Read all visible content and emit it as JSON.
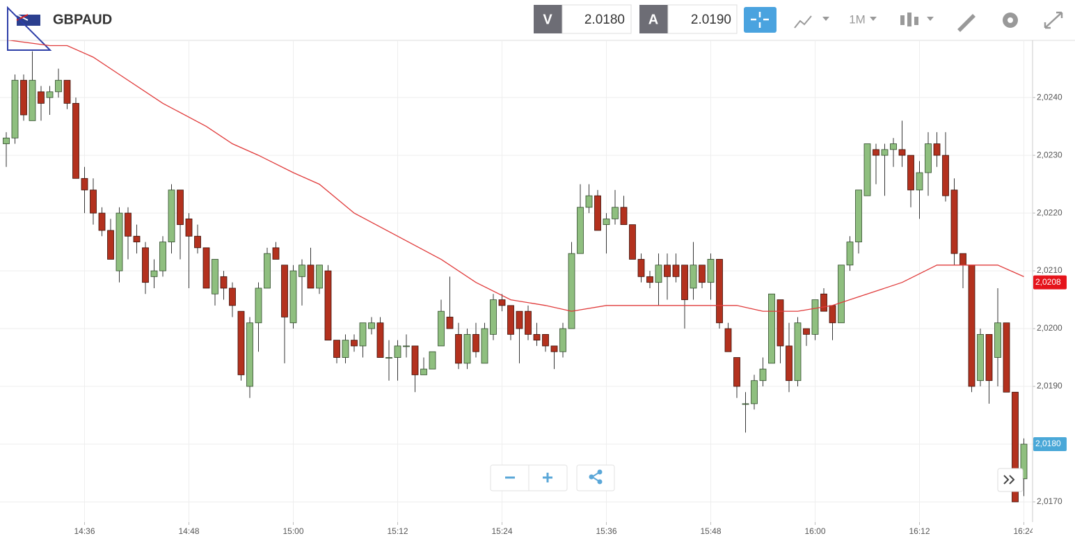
{
  "header": {
    "symbol": "GBPAUD",
    "bid_label": "V",
    "bid": "2.0180",
    "ask_label": "A",
    "ask": "2.0190",
    "timeframe": "1M"
  },
  "chart_data": {
    "type": "candlestick",
    "categories": [
      "14:27",
      "14:28",
      "14:29",
      "14:30",
      "14:31",
      "14:32",
      "14:33",
      "14:34",
      "14:35",
      "14:36",
      "14:37",
      "14:38",
      "14:39",
      "14:40",
      "14:41",
      "14:42",
      "14:43",
      "14:44",
      "14:45",
      "14:46",
      "14:47",
      "14:48",
      "14:49",
      "14:50",
      "14:51",
      "14:52",
      "14:53",
      "14:54",
      "14:55",
      "14:56",
      "14:57",
      "14:58",
      "14:59",
      "15:00",
      "15:01",
      "15:02",
      "15:03",
      "15:04",
      "15:05",
      "15:06",
      "15:07",
      "15:08",
      "15:09",
      "15:10",
      "15:11",
      "15:12",
      "15:13",
      "15:14",
      "15:15",
      "15:16",
      "15:17",
      "15:18",
      "15:19",
      "15:20",
      "15:21",
      "15:22",
      "15:23",
      "15:24",
      "15:25",
      "15:26",
      "15:27",
      "15:28",
      "15:29",
      "15:30",
      "15:31",
      "15:32",
      "15:33",
      "15:34",
      "15:35",
      "15:36",
      "15:37",
      "15:38",
      "15:39",
      "15:40",
      "15:41",
      "15:42",
      "15:43",
      "15:44",
      "15:45",
      "15:46",
      "15:47",
      "15:48",
      "15:49",
      "15:50",
      "15:51",
      "15:52",
      "15:53",
      "15:54",
      "15:55",
      "15:56",
      "15:57",
      "15:58",
      "15:59",
      "16:00",
      "16:01",
      "16:02",
      "16:03",
      "16:04",
      "16:05",
      "16:06",
      "16:07",
      "16:08",
      "16:09",
      "16:10",
      "16:11",
      "16:12",
      "16:13",
      "16:14",
      "16:15",
      "16:16",
      "16:17",
      "16:18",
      "16:19",
      "16:20",
      "16:21",
      "16:22",
      "16:23",
      "16:24"
    ],
    "open": [
      2.0232,
      2.0233,
      2.0243,
      2.0236,
      2.0241,
      2.024,
      2.0241,
      2.0243,
      2.0239,
      2.0226,
      2.0224,
      2.022,
      2.0217,
      2.021,
      2.022,
      2.0216,
      2.0214,
      2.0209,
      2.021,
      2.0215,
      2.0224,
      2.0219,
      2.0216,
      2.0214,
      2.0206,
      2.0209,
      2.0207,
      2.0203,
      2.019,
      2.0201,
      2.0207,
      2.0214,
      2.0211,
      2.0201,
      2.0209,
      2.0211,
      2.0207,
      2.021,
      2.0198,
      2.0195,
      2.0198,
      2.0197,
      2.02,
      2.0201,
      2.0195,
      2.0195,
      2.0197,
      2.0197,
      2.0192,
      2.0193,
      2.0197,
      2.0202,
      2.0199,
      2.0194,
      2.0199,
      2.0194,
      2.0199,
      2.0205,
      2.0204,
      2.0203,
      2.0203,
      2.0199,
      2.0199,
      2.0197,
      2.0196,
      2.02,
      2.0213,
      2.0221,
      2.0223,
      2.0218,
      2.0219,
      2.0221,
      2.0218,
      2.0212,
      2.0209,
      2.0208,
      2.0211,
      2.0211,
      2.0211,
      2.0207,
      2.0211,
      2.0208,
      2.0212,
      2.02,
      2.0195,
      2.0187,
      2.0187,
      2.0191,
      2.0194,
      2.0205,
      2.0197,
      2.0191,
      2.02,
      2.0199,
      2.0206,
      2.0204,
      2.0201,
      2.0211,
      2.0215,
      2.0223,
      2.0231,
      2.023,
      2.0231,
      2.0231,
      2.023,
      2.0224,
      2.0227,
      2.0232,
      2.023,
      2.0224,
      2.0213,
      2.0211,
      2.0191,
      2.0199,
      2.0195,
      2.0201,
      2.0189,
      2.0174
    ],
    "high": [
      2.0234,
      2.0244,
      2.0244,
      2.0248,
      2.0242,
      2.0242,
      2.0245,
      2.0243,
      2.024,
      2.0228,
      2.0226,
      2.0221,
      2.0219,
      2.0221,
      2.0221,
      2.0218,
      2.0215,
      2.0212,
      2.0216,
      2.0225,
      2.0224,
      2.022,
      2.0218,
      2.0214,
      2.0212,
      2.021,
      2.0208,
      2.0203,
      2.0202,
      2.0208,
      2.0214,
      2.0215,
      2.0211,
      2.0211,
      2.0212,
      2.0214,
      2.0211,
      2.0211,
      2.0198,
      2.0199,
      2.0199,
      2.0201,
      2.0202,
      2.0202,
      2.0198,
      2.0198,
      2.0199,
      2.0197,
      2.0195,
      2.0196,
      2.0205,
      2.0209,
      2.0201,
      2.02,
      2.0201,
      2.0201,
      2.0206,
      2.0206,
      2.0204,
      2.0203,
      2.0204,
      2.0201,
      2.0199,
      2.0197,
      2.0201,
      2.0215,
      2.0225,
      2.0225,
      2.0224,
      2.022,
      2.0224,
      2.0223,
      2.0218,
      2.0213,
      2.021,
      2.0213,
      2.0213,
      2.0213,
      2.0211,
      2.0215,
      2.0211,
      2.0213,
      2.0212,
      2.0201,
      2.0195,
      2.0189,
      2.0192,
      2.0195,
      2.0206,
      2.0205,
      2.0201,
      2.0202,
      2.02,
      2.0205,
      2.0207,
      2.0204,
      2.0211,
      2.0216,
      2.0224,
      2.0232,
      2.0232,
      2.0232,
      2.0233,
      2.0236,
      2.023,
      2.0229,
      2.0234,
      2.0234,
      2.0234,
      2.0226,
      2.0213,
      2.0211,
      2.02,
      2.0199,
      2.0207,
      2.0201,
      2.0189,
      2.0181
    ],
    "low": [
      2.0228,
      2.0232,
      2.0236,
      2.0236,
      2.0236,
      2.0237,
      2.024,
      2.0238,
      2.0226,
      2.022,
      2.0218,
      2.0216,
      2.0212,
      2.0208,
      2.0212,
      2.0213,
      2.0206,
      2.0207,
      2.0209,
      2.0213,
      2.0212,
      2.0207,
      2.0213,
      2.0207,
      2.0204,
      2.0205,
      2.0202,
      2.0191,
      2.0188,
      2.0196,
      2.0207,
      2.0212,
      2.0194,
      2.02,
      2.0204,
      2.0207,
      2.0206,
      2.0198,
      2.0194,
      2.0194,
      2.0196,
      2.0195,
      2.0199,
      2.0195,
      2.0191,
      2.0191,
      2.0195,
      2.0189,
      2.0192,
      2.0193,
      2.0197,
      2.02,
      2.0193,
      2.0193,
      2.0195,
      2.0194,
      2.0198,
      2.0203,
      2.0198,
      2.0194,
      2.0198,
      2.0197,
      2.0196,
      2.0193,
      2.0195,
      2.02,
      2.0213,
      2.022,
      2.0217,
      2.0213,
      2.0218,
      2.0218,
      2.0212,
      2.0208,
      2.0207,
      2.0204,
      2.0205,
      2.0208,
      2.02,
      2.0205,
      2.0207,
      2.0205,
      2.02,
      2.0196,
      2.0188,
      2.0182,
      2.0186,
      2.019,
      2.0194,
      2.0194,
      2.0189,
      2.019,
      2.0197,
      2.0198,
      2.0203,
      2.0198,
      2.0201,
      2.021,
      2.0213,
      2.0223,
      2.0225,
      2.0223,
      2.0228,
      2.0228,
      2.0221,
      2.0219,
      2.0223,
      2.0228,
      2.0222,
      2.0211,
      2.0207,
      2.0189,
      2.019,
      2.0187,
      2.019,
      2.0189,
      2.017,
      2.0171
    ],
    "close": [
      2.0233,
      2.0243,
      2.0237,
      2.0243,
      2.0239,
      2.0241,
      2.0243,
      2.0239,
      2.0226,
      2.0224,
      2.022,
      2.0217,
      2.0212,
      2.022,
      2.0216,
      2.0215,
      2.0208,
      2.021,
      2.0215,
      2.0224,
      2.0218,
      2.0216,
      2.0214,
      2.0207,
      2.0212,
      2.0207,
      2.0204,
      2.0192,
      2.0201,
      2.0207,
      2.0213,
      2.0212,
      2.0202,
      2.021,
      2.0211,
      2.0207,
      2.0211,
      2.0198,
      2.0195,
      2.0198,
      2.0197,
      2.0201,
      2.0201,
      2.0195,
      2.0195,
      2.0197,
      2.0197,
      2.0192,
      2.0193,
      2.0196,
      2.0203,
      2.02,
      2.0194,
      2.0199,
      2.0196,
      2.02,
      2.0205,
      2.0204,
      2.0199,
      2.02,
      2.0199,
      2.0198,
      2.0197,
      2.0196,
      2.02,
      2.0213,
      2.0221,
      2.0223,
      2.0217,
      2.0219,
      2.0221,
      2.0218,
      2.0212,
      2.0209,
      2.0208,
      2.0211,
      2.0209,
      2.0209,
      2.0205,
      2.0211,
      2.0208,
      2.0212,
      2.0201,
      2.0196,
      2.019,
      2.0187,
      2.0191,
      2.0193,
      2.0206,
      2.0197,
      2.0191,
      2.0201,
      2.0199,
      2.0205,
      2.0203,
      2.0201,
      2.0211,
      2.0215,
      2.0224,
      2.0232,
      2.023,
      2.0231,
      2.0232,
      2.023,
      2.0224,
      2.0227,
      2.0232,
      2.023,
      2.0223,
      2.0213,
      2.0211,
      2.019,
      2.0199,
      2.0191,
      2.0201,
      2.0189,
      2.017,
      2.018
    ],
    "up_color": "#8fbf7f",
    "down_color": "#b3311e",
    "ma": {
      "color": "#e03a3a",
      "x": [
        "14:27",
        "14:32",
        "14:34",
        "14:37",
        "14:40",
        "14:45",
        "14:50",
        "14:53",
        "14:56",
        "15:00",
        "15:03",
        "15:07",
        "15:12",
        "15:17",
        "15:21",
        "15:25",
        "15:29",
        "15:32",
        "15:36",
        "15:41",
        "15:44",
        "15:47",
        "15:51",
        "15:54",
        "15:58",
        "16:02",
        "16:06",
        "16:10",
        "16:14",
        "16:17",
        "16:21",
        "16:24"
      ],
      "values": [
        2.025,
        2.0249,
        2.0249,
        2.0247,
        2.0244,
        2.0239,
        2.0235,
        2.0232,
        2.023,
        2.0227,
        2.0225,
        2.022,
        2.0216,
        2.0212,
        2.0208,
        2.0205,
        2.0204,
        2.0203,
        2.0204,
        2.0204,
        2.0204,
        2.0204,
        2.0204,
        2.0203,
        2.0203,
        2.0204,
        2.0206,
        2.0208,
        2.0211,
        2.0211,
        2.0211,
        2.0209
      ]
    },
    "price_labels": [
      {
        "value": 2.0208,
        "label": "2,0208",
        "color": "#e5141b"
      },
      {
        "value": 2.018,
        "label": "2,0180",
        "color": "#4aa8d8"
      }
    ],
    "ylim": [
      2.01665,
      2.02499
    ],
    "yticks": [
      {
        "value": 2.017,
        "label": "2,0170"
      },
      {
        "value": 2.018,
        "label": "2,0180"
      },
      {
        "value": 2.019,
        "label": "2,0190"
      },
      {
        "value": 2.02,
        "label": "2,0200"
      },
      {
        "value": 2.021,
        "label": "2,0210"
      },
      {
        "value": 2.022,
        "label": "2,0220"
      },
      {
        "value": 2.023,
        "label": "2,0230"
      },
      {
        "value": 2.024,
        "label": "2,0240"
      }
    ],
    "xticks": [
      "14:36",
      "14:48",
      "15:00",
      "15:12",
      "15:24",
      "15:36",
      "15:48",
      "16:00",
      "16:12",
      "16:24"
    ],
    "grid": true
  }
}
